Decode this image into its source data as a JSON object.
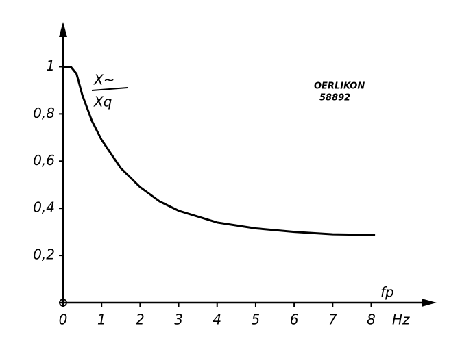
{
  "chart_data": {
    "type": "line",
    "xlabel": "fp",
    "xunit": "Hz",
    "ylabel": [
      "X~",
      "Xq"
    ],
    "annotation": [
      "OERLIKON",
      "58892"
    ],
    "x": [
      0,
      0.2,
      0.35,
      0.5,
      0.75,
      1,
      1.5,
      2,
      2.5,
      3,
      4,
      5,
      6,
      7,
      8.1
    ],
    "series": [
      {
        "color": "#000000",
        "values": [
          1,
          1,
          0.97,
          0.88,
          0.77,
          0.69,
          0.57,
          0.49,
          0.43,
          0.39,
          0.34,
          0.315,
          0.3,
          0.29,
          0.287
        ]
      }
    ],
    "xlim": [
      0,
      9.7
    ],
    "ylim": [
      0,
      1.19
    ],
    "xticks": [
      0,
      1,
      2,
      3,
      4,
      5,
      6,
      7,
      8
    ],
    "yticks": [
      {
        "value": 0.2,
        "label": "0,2"
      },
      {
        "value": 0.4,
        "label": "0,4"
      },
      {
        "value": 0.6,
        "label": "0,6"
      },
      {
        "value": 0.8,
        "label": "0,8"
      },
      1
    ],
    "grid": false
  }
}
